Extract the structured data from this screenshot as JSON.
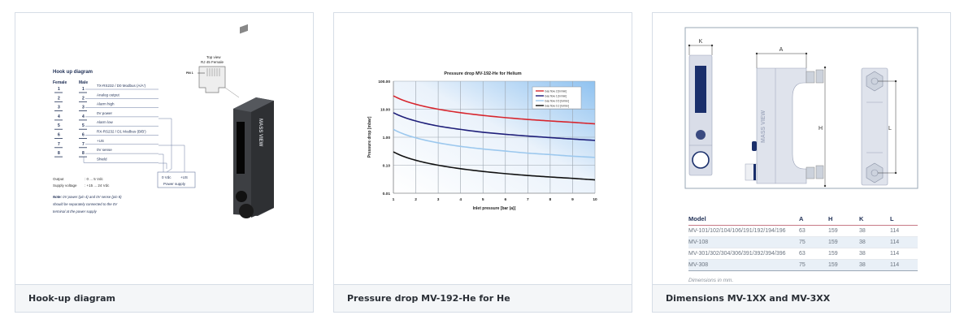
{
  "cards": [
    {
      "caption": "Hook-up diagram",
      "hookup": {
        "title": "Hook up diagram",
        "female_label": "Female",
        "male_label": "Male",
        "pins": [
          "1",
          "2",
          "3",
          "4",
          "5",
          "6",
          "7",
          "8"
        ],
        "signals": [
          "TX-RS232 / D0 Modbus (A/A')",
          "Analog output",
          "Alarm high",
          "0V power",
          "Alarm low",
          "RX-RS232 / D1 Modbus (B/B')",
          "+US",
          "0V sense",
          "Shield"
        ],
        "power_supply": {
          "zero": "0 Vdc",
          "plus": "+US",
          "label": "Power supply"
        },
        "specs": [
          {
            "label": "Output",
            "value": ": 0 ... 5 Vdc"
          },
          {
            "label": "Supply voltage",
            "value": ": +15 ... 24 Vdc"
          }
        ],
        "note_bold": "Note:",
        "note_lines": [
          " 0V power (pin 4) and 0V sense (pin 8)",
          "should be separately connected to the 0V",
          "terminal at the power supply"
        ],
        "top_view": [
          "Top view",
          "RJ 45 Female"
        ],
        "pin1_label": "PIN 1",
        "device_text": "MASS VIEW"
      }
    },
    {
      "caption": "Pressure drop MV-192-He for He"
    },
    {
      "caption": "Dimensions MV-1XX and MV-3XX",
      "drawing_labels": {
        "k": "K",
        "a": "A",
        "h": "H",
        "l": "L"
      },
      "device_text": "MASS VIEW",
      "table": {
        "headers": [
          "Model",
          "A",
          "H",
          "K",
          "L"
        ],
        "rows": [
          [
            "MV-101/102/104/106/191/192/194/196",
            "63",
            "159",
            "38",
            "114"
          ],
          [
            "MV-108",
            "75",
            "159",
            "38",
            "114"
          ],
          [
            "MV-301/302/304/306/391/392/394/396",
            "63",
            "159",
            "38",
            "114"
          ],
          [
            "MV-308",
            "75",
            "159",
            "38",
            "114"
          ]
        ],
        "footnote": "Dimensions in mm."
      }
    }
  ],
  "chart_data": {
    "type": "line",
    "title": "Pressure drop MV-192-He for Helium",
    "xlabel": "Inlet pressure [bar (a)]",
    "ylabel": "Pressure drop [mbar]",
    "xlim": [
      1,
      10
    ],
    "ylim": [
      0.01,
      100
    ],
    "yscale": "log",
    "grid": true,
    "legend_position": "top-right",
    "x_ticks": [
      "1",
      "2",
      "3",
      "4",
      "5",
      "6",
      "7",
      "8",
      "9",
      "10"
    ],
    "y_ticks": [
      "100.00",
      "10.00",
      "1.00",
      "0.10",
      "0.01"
    ],
    "y_tick_values": [
      100,
      10,
      1,
      0.1,
      0.01
    ],
    "x": [
      1,
      2,
      3,
      4,
      5,
      6,
      7,
      8,
      9,
      10
    ],
    "series": [
      {
        "name": "Gas flow 2 [ln/min]",
        "color": "#d7262e",
        "values": [
          30,
          15,
          10,
          7.5,
          6,
          5,
          4.3,
          3.8,
          3.4,
          3.0
        ]
      },
      {
        "name": "Gas flow 1 [ln/min]",
        "color": "#1f1f7a",
        "values": [
          7.5,
          3.8,
          2.5,
          1.9,
          1.5,
          1.27,
          1.1,
          0.97,
          0.86,
          0.77
        ]
      },
      {
        "name": "Gas flow 0.5 [ln/min]",
        "color": "#9cc8ee",
        "values": [
          1.9,
          0.95,
          0.63,
          0.47,
          0.38,
          0.32,
          0.27,
          0.24,
          0.21,
          0.19
        ]
      },
      {
        "name": "Gas flow 0.2 [ln/min]",
        "color": "#111111",
        "values": [
          0.3,
          0.15,
          0.1,
          0.075,
          0.06,
          0.05,
          0.043,
          0.038,
          0.034,
          0.03
        ]
      }
    ]
  }
}
